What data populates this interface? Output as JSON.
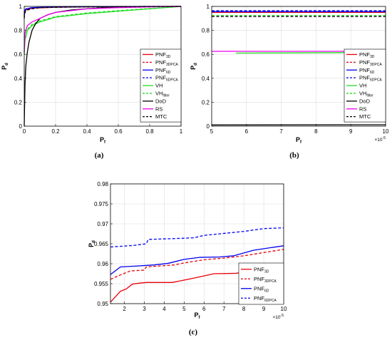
{
  "chart_data": [
    {
      "id": "a",
      "type": "line",
      "caption": "(a)",
      "xlabel": "P",
      "xlabel_sub": "f",
      "ylabel": "P",
      "ylabel_sub": "d",
      "xlim": [
        0,
        1
      ],
      "ylim": [
        0,
        1
      ],
      "xticks": [
        0,
        0.2,
        0.4,
        0.6,
        0.8,
        1
      ],
      "xtick_labels": [
        "0",
        "0.2",
        "0.4",
        "0.6",
        "0.8",
        "1"
      ],
      "yticks": [
        0,
        0.2,
        0.4,
        0.6,
        0.8,
        1
      ],
      "ytick_labels": [
        "0",
        "0.2",
        "0.4",
        "0.6",
        "0.8",
        "1"
      ],
      "grid": true,
      "legend_position": "bottom-right",
      "series": [
        {
          "name": "PNF",
          "sub": "3D",
          "color": "#e8000b",
          "dash": "solid",
          "x": [
            0,
            0.002,
            0.01,
            0.05,
            0.2,
            0.5,
            1
          ],
          "y": [
            0.9,
            0.95,
            0.97,
            0.985,
            0.993,
            0.998,
            1
          ]
        },
        {
          "name": "PNF",
          "sub": "3DPCA",
          "color": "#e8000b",
          "dash": "dashed",
          "x": [
            0,
            0.002,
            0.01,
            0.05,
            0.2,
            0.5,
            1
          ],
          "y": [
            0.91,
            0.955,
            0.975,
            0.988,
            0.995,
            0.999,
            1
          ]
        },
        {
          "name": "PNF",
          "sub": "6D",
          "color": "#0000ee",
          "dash": "solid",
          "x": [
            0,
            0.002,
            0.01,
            0.05,
            0.2,
            0.5,
            1
          ],
          "y": [
            0.92,
            0.96,
            0.978,
            0.99,
            0.996,
            0.999,
            1
          ]
        },
        {
          "name": "PNF",
          "sub": "6DPCA",
          "color": "#0000ee",
          "dash": "dashed",
          "x": [
            0,
            0.002,
            0.01,
            0.05,
            0.2,
            0.5,
            1
          ],
          "y": [
            0.93,
            0.965,
            0.98,
            0.99,
            0.996,
            0.999,
            1
          ]
        },
        {
          "name": "VH",
          "sub": "",
          "color": "#22dd22",
          "dash": "solid",
          "x": [
            0,
            0.005,
            0.02,
            0.05,
            0.1,
            0.2,
            0.4,
            0.6,
            0.8,
            1
          ],
          "y": [
            0.6,
            0.72,
            0.8,
            0.84,
            0.87,
            0.91,
            0.94,
            0.96,
            0.98,
            1
          ]
        },
        {
          "name": "VH",
          "sub": "filter",
          "color": "#22dd22",
          "dash": "dashed",
          "x": [
            0,
            0.005,
            0.02,
            0.05,
            0.1,
            0.2,
            0.4,
            0.6,
            0.8,
            1
          ],
          "y": [
            0.62,
            0.74,
            0.81,
            0.85,
            0.88,
            0.915,
            0.945,
            0.965,
            0.982,
            1
          ]
        },
        {
          "name": "DoD",
          "sub": "",
          "color": "#000000",
          "dash": "solid",
          "x": [
            0,
            0.002,
            0.005,
            0.01,
            0.02,
            0.03,
            0.05,
            0.07,
            0.1,
            0.15,
            0.2,
            0.3,
            0.5,
            0.8,
            1
          ],
          "y": [
            0,
            0.15,
            0.35,
            0.5,
            0.62,
            0.7,
            0.8,
            0.85,
            0.9,
            0.93,
            0.95,
            0.97,
            0.99,
            0.998,
            1
          ]
        },
        {
          "name": "RS",
          "sub": "",
          "color": "#ee00ee",
          "dash": "solid",
          "x": [
            0,
            0.005,
            0.02,
            0.05,
            0.1,
            0.15,
            0.2,
            0.4,
            0.6,
            0.8,
            1
          ],
          "y": [
            0.62,
            0.78,
            0.84,
            0.87,
            0.9,
            0.93,
            0.95,
            0.98,
            0.99,
            0.996,
            1
          ]
        },
        {
          "name": "MTC",
          "sub": "",
          "color": "#000000",
          "dash": "dashed",
          "x": [
            0,
            0.002,
            0.005,
            0.01,
            0.02,
            0.05,
            0.1,
            0.3,
            1
          ],
          "y": [
            0.9,
            0.93,
            0.95,
            0.96,
            0.97,
            0.98,
            0.99,
            0.995,
            1
          ]
        }
      ]
    },
    {
      "id": "b",
      "type": "line",
      "caption": "(b)",
      "xlabel": "P",
      "xlabel_sub": "f",
      "ylabel": "P",
      "ylabel_sub": "d",
      "xlim": [
        5e-05,
        0.0001
      ],
      "ylim": [
        0,
        1
      ],
      "xticks": [
        5e-05,
        6e-05,
        7e-05,
        8e-05,
        9e-05,
        0.0001
      ],
      "xtick_labels": [
        "5",
        "6",
        "7",
        "8",
        "9",
        "10"
      ],
      "x_exponent": "×10",
      "x_exponent_power": "-5",
      "yticks": [
        0,
        0.2,
        0.4,
        0.6,
        0.8,
        1
      ],
      "ytick_labels": [
        "0",
        "0.2",
        "0.4",
        "0.6",
        "0.8",
        "1"
      ],
      "grid": true,
      "legend_position": "bottom-right",
      "series": [
        {
          "name": "PNF",
          "sub": "3D",
          "color": "#e8000b",
          "dash": "solid",
          "x": [
            5e-05,
            0.0001
          ],
          "y": [
            0.95,
            0.95
          ]
        },
        {
          "name": "PNF",
          "sub": "3DPCA",
          "color": "#e8000b",
          "dash": "dashed",
          "x": [
            5e-05,
            0.0001
          ],
          "y": [
            0.956,
            0.956
          ]
        },
        {
          "name": "PNF",
          "sub": "6D",
          "color": "#0000ee",
          "dash": "solid",
          "x": [
            5e-05,
            0.0001
          ],
          "y": [
            0.957,
            0.957
          ]
        },
        {
          "name": "PNF",
          "sub": "6DPCA",
          "color": "#0000ee",
          "dash": "dashed",
          "x": [
            5e-05,
            0.0001
          ],
          "y": [
            0.964,
            0.964
          ]
        },
        {
          "name": "VH",
          "sub": "",
          "color": "#22dd22",
          "dash": "solid",
          "x": [
            5.7e-05,
            0.0001
          ],
          "y": [
            0.61,
            0.615
          ]
        },
        {
          "name": "VH",
          "sub": "filter",
          "color": "#22dd22",
          "dash": "dashed",
          "x": [
            5e-05,
            0.0001
          ],
          "y": [
            0.925,
            0.925
          ]
        },
        {
          "name": "DoD",
          "sub": "",
          "color": "#000000",
          "dash": "solid",
          "x": [
            5e-05,
            0.0001
          ],
          "y": [
            0.01,
            0.012
          ]
        },
        {
          "name": "RS",
          "sub": "",
          "color": "#ee00ee",
          "dash": "solid",
          "x": [
            5e-05,
            0.0001
          ],
          "y": [
            0.625,
            0.625
          ]
        },
        {
          "name": "MTC",
          "sub": "",
          "color": "#000000",
          "dash": "dashed",
          "x": [
            5e-05,
            0.0001
          ],
          "y": [
            0.915,
            0.915
          ]
        }
      ]
    },
    {
      "id": "c",
      "type": "line",
      "caption": "(c)",
      "xlabel": "P",
      "xlabel_sub": "f",
      "ylabel": "P",
      "ylabel_sub": "d",
      "xlim": [
        1.3e-05,
        0.0001
      ],
      "ylim": [
        0.95,
        0.98
      ],
      "xticks": [
        2e-05,
        3e-05,
        4e-05,
        5e-05,
        6e-05,
        7e-05,
        8e-05,
        9e-05,
        0.0001
      ],
      "xtick_labels": [
        "2",
        "3",
        "4",
        "5",
        "6",
        "7",
        "8",
        "9",
        "10"
      ],
      "x_exponent": "×10",
      "x_exponent_power": "-5",
      "yticks": [
        0.95,
        0.955,
        0.96,
        0.965,
        0.97,
        0.975,
        0.98
      ],
      "ytick_labels": [
        "0.95",
        "0.955",
        "0.96",
        "0.965",
        "0.97",
        "0.975",
        "0.98"
      ],
      "grid": true,
      "legend_position": "bottom-right",
      "series": [
        {
          "name": "PNF",
          "sub": "3D",
          "color": "#e8000b",
          "dash": "solid",
          "x": [
            1.3e-05,
            1.8e-05,
            2.1e-05,
            2.4e-05,
            2.7e-05,
            3.1e-05,
            4.4e-05,
            5.5e-05,
            6.5e-05,
            7.6e-05,
            8.5e-05,
            0.0001
          ],
          "y": [
            0.9504,
            0.9531,
            0.9537,
            0.9549,
            0.9551,
            0.9553,
            0.9553,
            0.9564,
            0.9575,
            0.9576,
            0.9582,
            0.9588
          ]
        },
        {
          "name": "PNF",
          "sub": "3DPCA",
          "color": "#e8000b",
          "dash": "dashed",
          "x": [
            1.3e-05,
            1.8e-05,
            2.3e-05,
            3e-05,
            3.1e-05,
            4.5e-05,
            5e-05,
            6e-05,
            7e-05,
            8e-05,
            9e-05,
            0.0001
          ],
          "y": [
            0.9561,
            0.9572,
            0.9582,
            0.9584,
            0.9592,
            0.9597,
            0.9602,
            0.961,
            0.9614,
            0.962,
            0.9628,
            0.9636
          ]
        },
        {
          "name": "PNF",
          "sub": "6D",
          "color": "#0000ee",
          "dash": "solid",
          "x": [
            1.3e-05,
            1.8e-05,
            2.5e-05,
            3.5e-05,
            4.2e-05,
            5e-05,
            5.8e-05,
            6.8e-05,
            7.5e-05,
            8.5e-05,
            0.0001
          ],
          "y": [
            0.9573,
            0.9592,
            0.9594,
            0.9597,
            0.9601,
            0.9611,
            0.9616,
            0.9617,
            0.962,
            0.9634,
            0.9645
          ]
        },
        {
          "name": "PNF",
          "sub": "6DPCA",
          "color": "#0000ee",
          "dash": "dashed",
          "x": [
            1.3e-05,
            2.5e-05,
            3.1e-05,
            3.2e-05,
            4.5e-05,
            5.5e-05,
            6e-05,
            7e-05,
            8e-05,
            9e-05,
            0.0001
          ],
          "y": [
            0.9642,
            0.9646,
            0.965,
            0.9661,
            0.9663,
            0.9665,
            0.9671,
            0.9676,
            0.9681,
            0.9688,
            0.969
          ]
        }
      ]
    }
  ]
}
